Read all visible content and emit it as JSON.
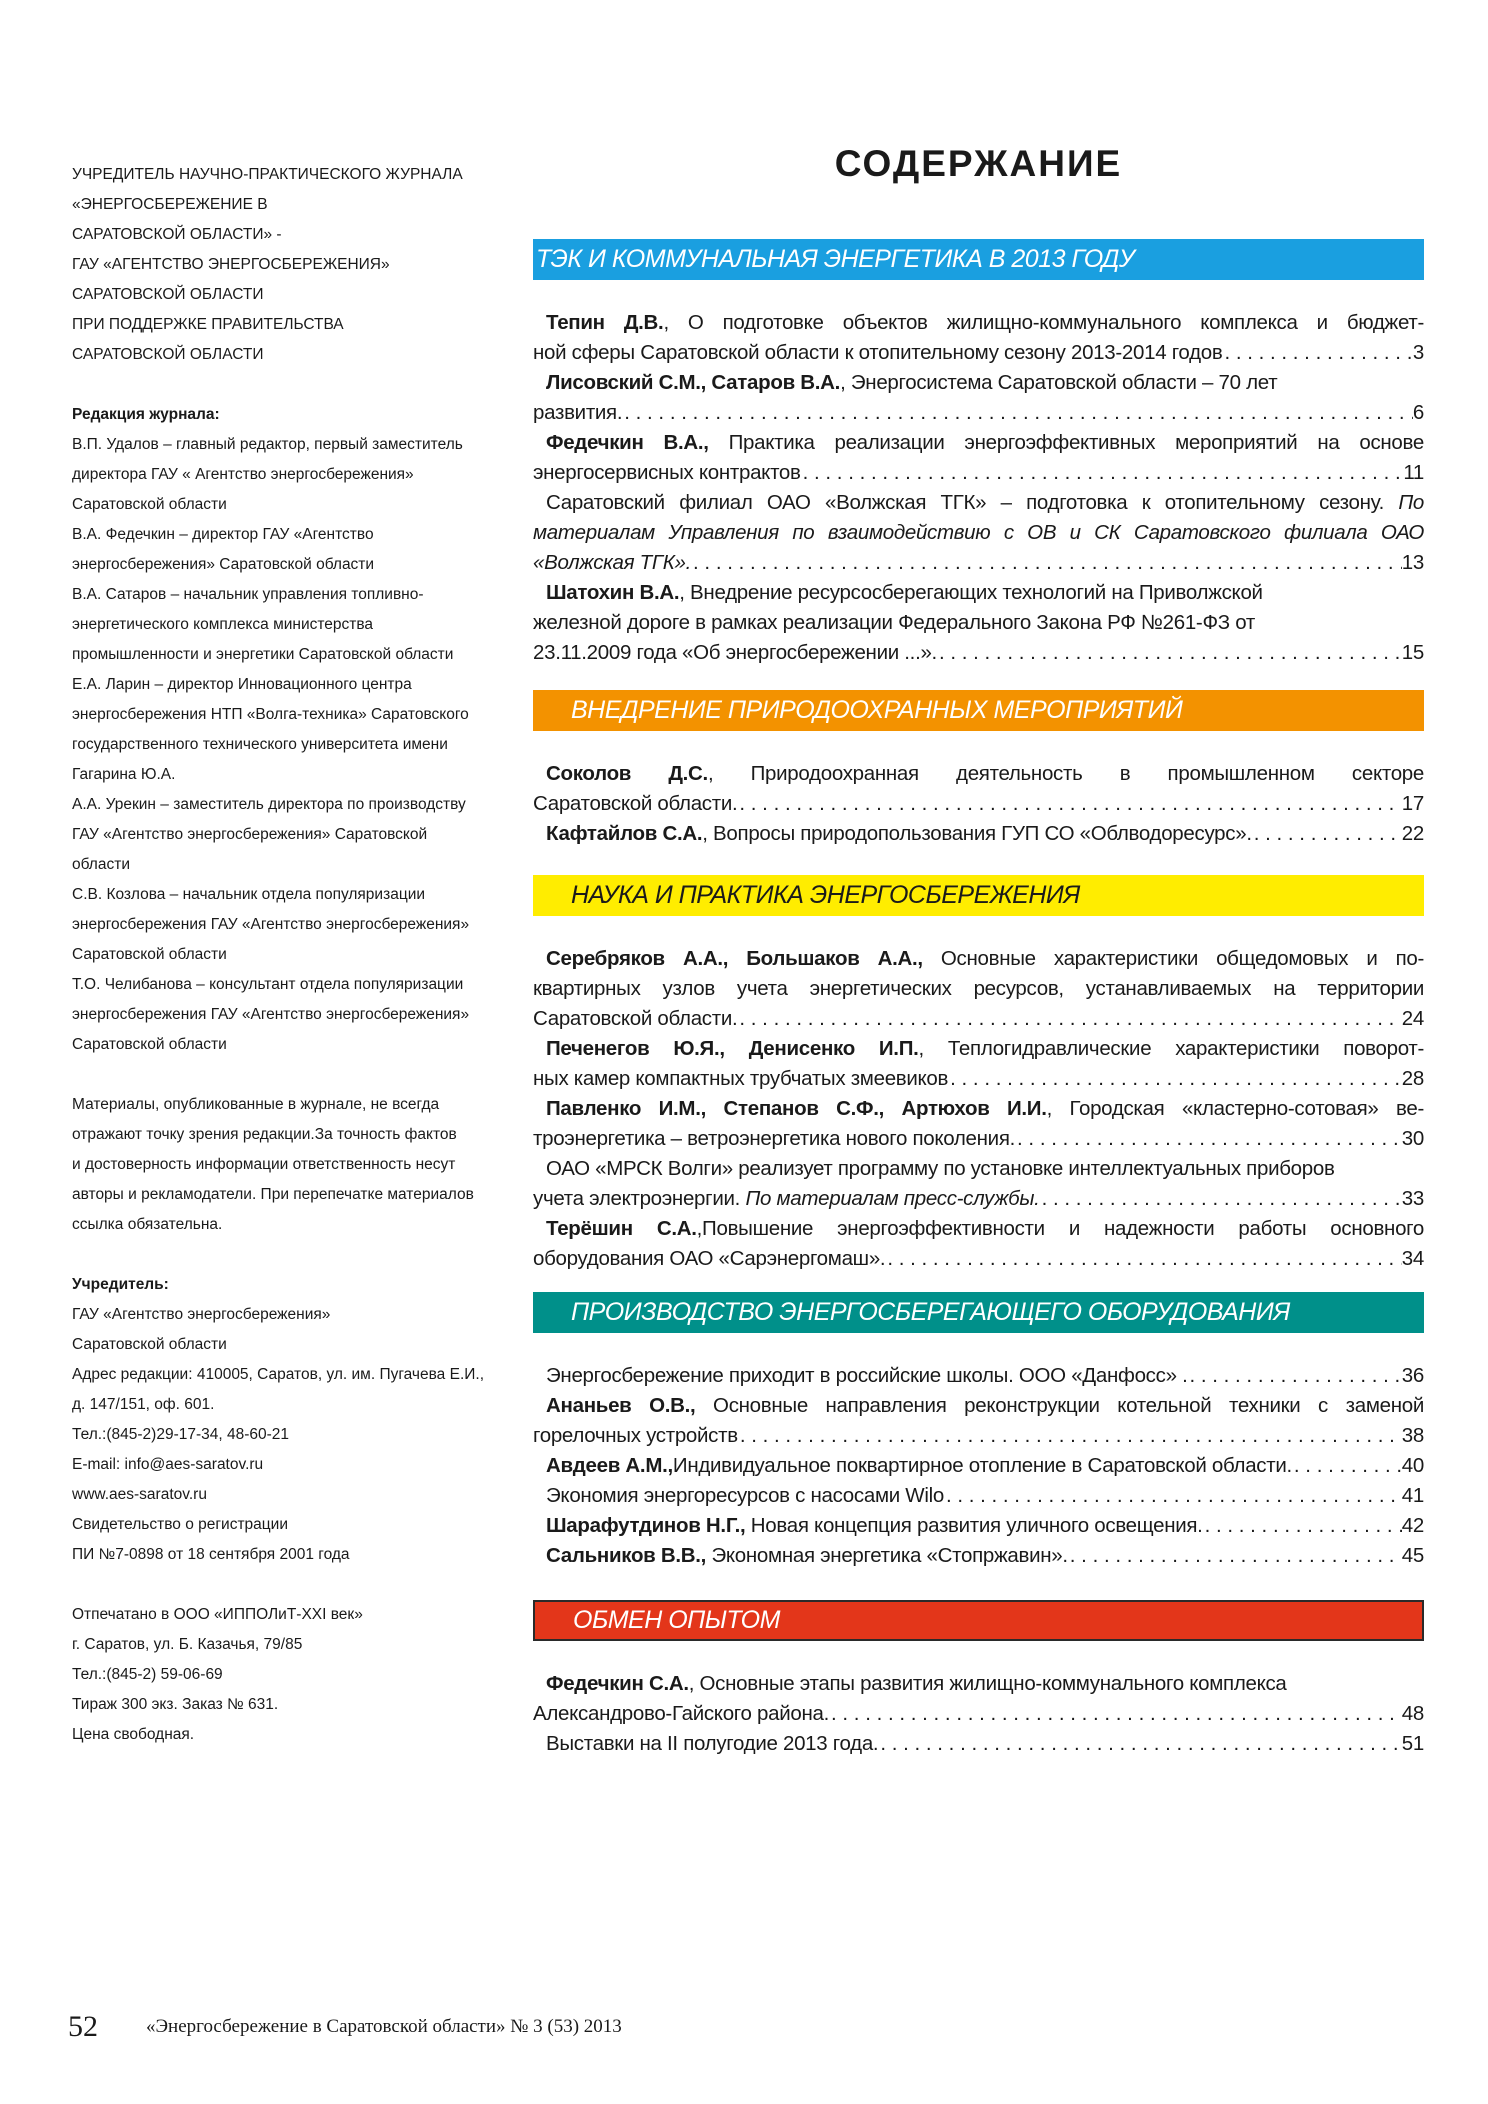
{
  "left": {
    "publisher_lines": [
      "УЧРЕДИТЕЛЬ НАУЧНО-ПРАКТИЧЕСКОГО ЖУРНАЛА",
      "«ЭНЕРГОСБЕРЕЖЕНИЕ В",
      "САРАТОВСКОЙ ОБЛАСТИ» -",
      "ГАУ «АГЕНТСТВО ЭНЕРГОСБЕРЕЖЕНИЯ»",
      "САРАТОВСКОЙ ОБЛАСТИ",
      "ПРИ ПОДДЕРЖКЕ ПРАВИТЕЛЬСТВА",
      "САРАТОВСКОЙ ОБЛАСТИ"
    ],
    "editorial": {
      "heading": "Редакция журнала:",
      "lines": [
        "В.П. Удалов – главный редактор, первый заместитель",
        "директора ГАУ « Агентство энергосбережения»",
        "Саратовской области",
        "В.А. Федечкин – директор ГАУ «Агентство",
        "энергосбережения» Саратовской области",
        "В.А. Сатаров –   начальник управления топливно-",
        "энергетического комплекса министерства",
        "промышленности и энергетики Саратовской области",
        "Е.А. Ларин – директор Инновационного центра",
        "энергосбережения НТП «Волга-техника» Саратовского",
        "государственного технического университета имени",
        "Гагарина Ю.А.",
        "А.А. Урекин – заместитель директора по производству",
        "ГАУ «Агентство энергосбережения» Саратовской",
        "области",
        "С.В. Козлова – начальник отдела популяризации",
        "энергосбережения ГАУ «Агентство энергосбережения»",
        "Саратовской области",
        "Т.О. Челибанова – консультант отдела популяризации",
        "энергосбережения ГАУ «Агентство энергосбережения»",
        "Саратовской области"
      ]
    },
    "disclaimer_lines": [
      "Материалы, опубликованные в журнале, не всегда",
      "отражают точку зрения редакции.За точность фактов",
      "и достоверность информации ответственность несут",
      "авторы и рекламодатели. При перепечатке материалов",
      "ссылка обязательна."
    ],
    "founder": {
      "heading": "Учредитель:",
      "lines": [
        "ГАУ «Агентство энергосбережения»",
        "Саратовской области",
        "Адрес редакции: 410005, Саратов, ул. им. Пугачева Е.И.,",
        "д. 147/151, оф. 601.",
        "Тел.:(845-2)29-17-34, 48-60-21",
        "E-mail: info@aes-saratov.ru",
        "www.aes-saratov.ru",
        "Свидетельство о регистрации",
        "ПИ №7-0898 от 18 сентября 2001 года"
      ]
    },
    "printer_lines": [
      "Отпечатано в ООО «ИППОЛиТ-XXI век»",
      "г. Саратов, ул. Б. Казачья, 79/85",
      "Тел.:(845-2) 59-06-69",
      "Тираж 300 экз. Заказ № 631.",
      "Цена свободная."
    ]
  },
  "contents": {
    "title": "СОДЕРЖАНИЕ",
    "sections": [
      {
        "title": "ТЭК И КОММУНАЛЬНАЯ ЭНЕРГЕТИКА В 2013 ГОДУ",
        "color": "#1a9fe0",
        "entries": [
          {
            "lines": [
              [
                {
                  "b": "Тепин Д.В."
                },
                {
                  "t": ", О подготовке объектов жилищно-коммунального комплекса и бюджет-"
                }
              ],
              [
                {
                  "t": "ной сферы Саратовской области к отопительному сезону 2013-2014 годов"
                }
              ]
            ],
            "page": "3"
          },
          {
            "lines": [
              [
                {
                  "b": "Лисовский С.М., Сатаров В.А."
                },
                {
                  "t": ", Энергосистема Саратовской области – 70 лет"
                }
              ],
              [
                {
                  "t": "развития."
                }
              ]
            ],
            "page": "6"
          },
          {
            "lines": [
              [
                {
                  "b": "Федечкин В.А.,"
                },
                {
                  "t": " Практика реализации энергоэффективных мероприятий на основе"
                }
              ],
              [
                {
                  "t": "энергосервисных контрактов"
                }
              ]
            ],
            "page": "11"
          },
          {
            "lines": [
              [
                {
                  "t": "Саратовский филиал ОАО «Волжская ТГК» – подготовка к отопительному сезону. "
                },
                {
                  "i": "По"
                }
              ],
              [
                {
                  "i": "материалам Управления по взаимодействию с ОВ и СК Саратовского филиала ОАО"
                }
              ],
              [
                {
                  "i": "«Волжская ТГК»."
                }
              ]
            ],
            "page": "13"
          },
          {
            "lines": [
              [
                {
                  "b": "Шатохин В.А."
                },
                {
                  "t": ", Внедрение ресурсосберегающих технологий на Приволжской"
                }
              ],
              [
                {
                  "t": "железной дороге в рамках реализации Федерального Закона РФ №261-ФЗ от"
                }
              ],
              [
                {
                  "t": "23.11.2009 года «Об энергосбережении ...»."
                }
              ]
            ],
            "page": "15"
          }
        ]
      },
      {
        "title": "ВНЕДРЕНИЕ ПРИРОДООХРАННЫХ МЕРОПРИЯТИЙ",
        "color": "#f39200",
        "entries": [
          {
            "lines": [
              [
                {
                  "b": "Соколов Д.С."
                },
                {
                  "t": ", Природоохранная деятельность в промышленном секторе"
                }
              ],
              [
                {
                  "t": "Саратовской области."
                }
              ]
            ],
            "page": "17"
          },
          {
            "lines": [
              [
                {
                  "b": "Кафтайлов С.А."
                },
                {
                  "t": ", Вопросы природопользования ГУП СО «Облводоресурс»."
                }
              ]
            ],
            "page": "22"
          }
        ]
      },
      {
        "title": "НАУКА И ПРАКТИКА ЭНЕРГОСБЕРЕЖЕНИЯ",
        "color": "#ffed00",
        "entries": [
          {
            "lines": [
              [
                {
                  "b": "Серебряков А.А., Большаков А.А.,"
                },
                {
                  "t": " Основные характеристики общедомовых и по-"
                }
              ],
              [
                {
                  "t": "квартирных узлов учета энергетических ресурсов, устанавливаемых на территории"
                }
              ],
              [
                {
                  "t": "Саратовской области."
                }
              ]
            ],
            "page": "24"
          },
          {
            "lines": [
              [
                {
                  "b": "Печенегов Ю.Я., Денисенко И.П."
                },
                {
                  "t": ", Теплогидравлические характеристики поворот-"
                }
              ],
              [
                {
                  "t": "ных камер компактных трубчатых змеевиков"
                }
              ]
            ],
            "page": "28"
          },
          {
            "lines": [
              [
                {
                  "b": "Павленко И.М., Степанов С.Ф., Артюхов И.И."
                },
                {
                  "t": ", Городская «кластерно-сотовая» ве-"
                }
              ],
              [
                {
                  "t": "троэнергетика – ветроэнергетика нового поколения."
                }
              ]
            ],
            "page": "30"
          },
          {
            "lines": [
              [
                {
                  "t": "ОАО «МРСК Волги» реализует программу по установке интеллектуальных приборов"
                }
              ],
              [
                {
                  "t": "учета электроэнергии. "
                },
                {
                  "i": "По материалам пресс-службы."
                }
              ]
            ],
            "page": "33"
          },
          {
            "lines": [
              [
                {
                  "b": "Терёшин С.А."
                },
                {
                  "t": ",Повышение энергоэффективности  и надежности работы основного"
                }
              ],
              [
                {
                  "t": "оборудования ОАО «Сарэнергомаш»."
                }
              ]
            ],
            "page": "34"
          }
        ]
      },
      {
        "title": "ПРОИЗВОДСТВО ЭНЕРГОСБЕРЕГАЮЩЕГО ОБОРУДОВАНИЯ",
        "color": "#00908a",
        "entries": [
          {
            "lines": [
              [
                {
                  "t": "Энергосбережение приходит в российские школы. ООО «Данфосс» ."
                }
              ]
            ],
            "page": "36"
          },
          {
            "lines": [
              [
                {
                  "b": "Ананьев О.В.,"
                },
                {
                  "t": " Основные направления реконструкции котельной техники с заменой"
                }
              ],
              [
                {
                  "t": "горелочных устройств"
                }
              ]
            ],
            "page": "38"
          },
          {
            "lines": [
              [
                {
                  "b": "Авдеев А.М.,"
                },
                {
                  "t": "Индивидуальное поквартирное отопление в Саратовской области."
                }
              ]
            ],
            "page": "40"
          },
          {
            "lines": [
              [
                {
                  "t": "Экономия энергоресурсов с насосами Wilo"
                }
              ]
            ],
            "page": "41"
          },
          {
            "lines": [
              [
                {
                  "b": "Шарафутдинов Н.Г.,"
                },
                {
                  "t": " Новая концепция развития уличного освещения."
                }
              ]
            ],
            "page": "42"
          },
          {
            "lines": [
              [
                {
                  "b": "Сальников В.В.,"
                },
                {
                  "t": " Экономная энергетика «Стопржавин»."
                }
              ]
            ],
            "page": "45"
          }
        ]
      },
      {
        "title": "ОБМЕН ОПЫТОМ",
        "color": "#e3361a",
        "entries": [
          {
            "lines": [
              [
                {
                  "b": "Федечкин С.А."
                },
                {
                  "t": ", Основные этапы развития жилищно-коммунального комплекса"
                }
              ],
              [
                {
                  "t": "Александрово-Гайского района."
                }
              ]
            ],
            "page": "48"
          },
          {
            "lines": [
              [
                {
                  "t": "Выставки на II полугодие 2013 года."
                }
              ]
            ],
            "page": "51"
          }
        ]
      }
    ]
  },
  "footer": {
    "page_number": "52",
    "journal": "«Энергосбережение в Саратовской области» № 3 (53) 2013"
  }
}
